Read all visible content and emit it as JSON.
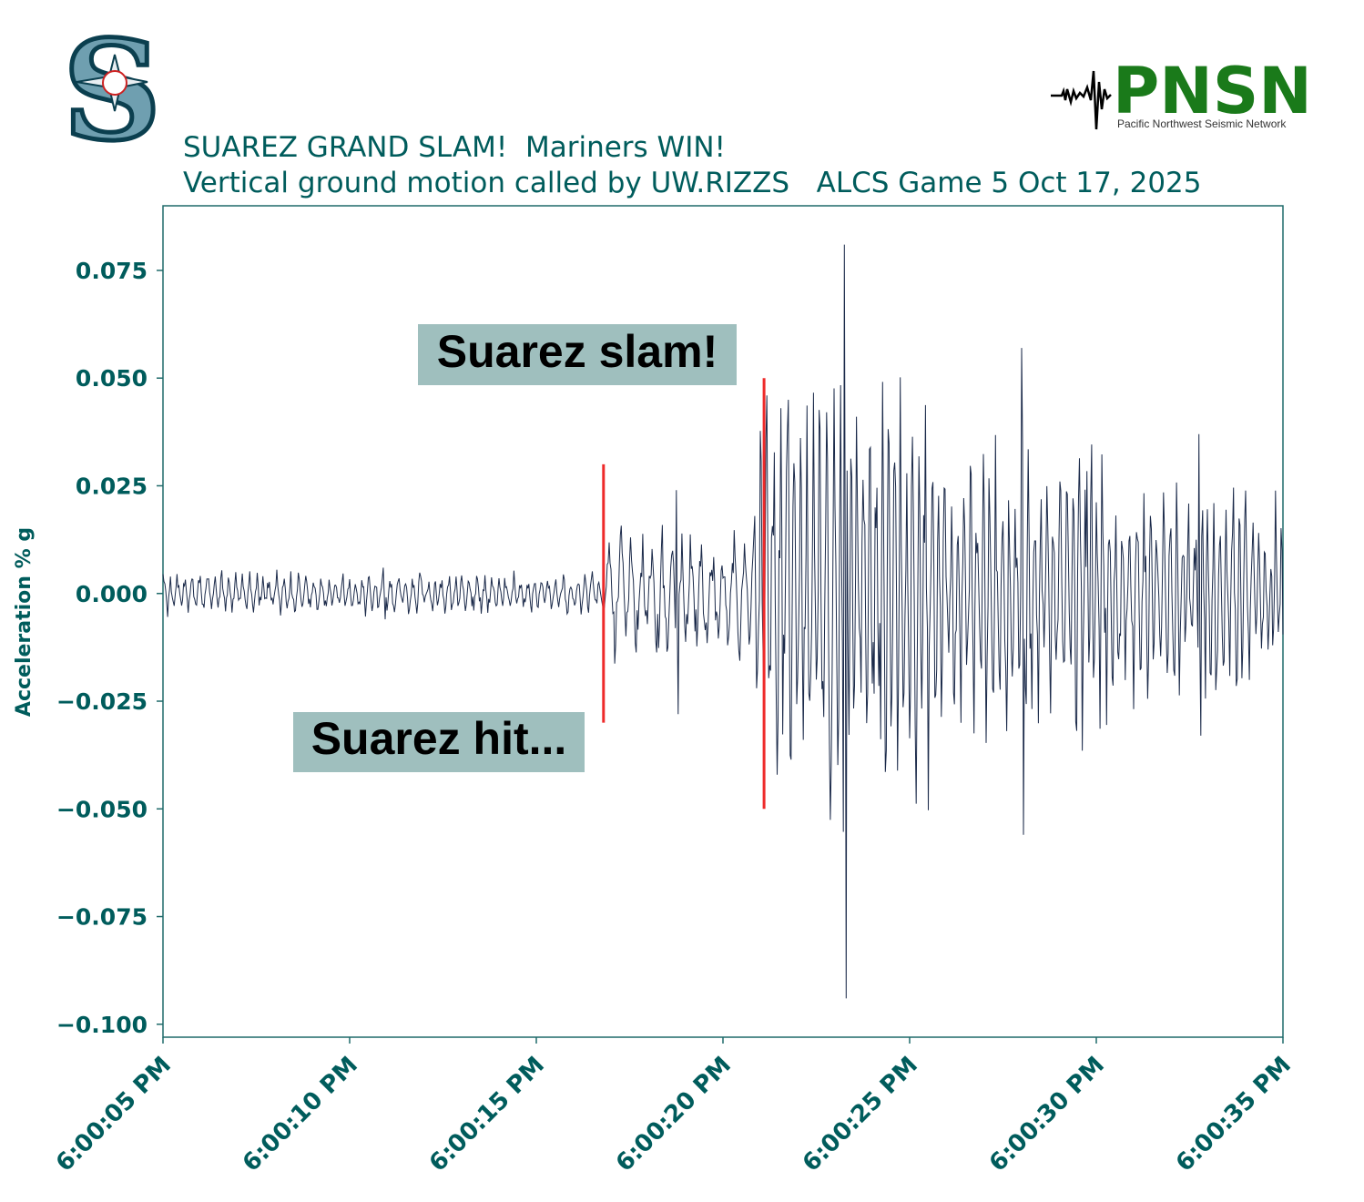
{
  "title": {
    "line1": "SUAREZ GRAND SLAM!  Mariners WIN!",
    "line2": "Vertical ground motion called by UW.RIZZS   ALCS Game 5 Oct 17, 2025"
  },
  "logos": {
    "left": {
      "icon": "mariners-compass-s-logo",
      "letter": "S"
    },
    "right": {
      "icon": "seismogram-icon",
      "name": "PNSN",
      "subtitle": "Pacific Northwest Seismic Network"
    }
  },
  "colors": {
    "text": "#005c5c",
    "trace": "#1b2a4a",
    "marker": "#ee2a2a",
    "annotation_bg": "#9fbfbe",
    "pnsn_green": "#1a7a1a"
  },
  "chart_data": {
    "type": "line",
    "title": "SUAREZ GRAND SLAM!  Mariners WIN!",
    "subtitle": "Vertical ground motion called by UW.RIZZS   ALCS Game 5 Oct 17, 2025",
    "xlabel": "",
    "ylabel": "Acceleration % g",
    "xlim": [
      "6:00:05 PM",
      "6:00:35 PM"
    ],
    "ylim": [
      -0.103,
      0.09
    ],
    "x_ticks": [
      "6:00:05 PM",
      "6:00:10 PM",
      "6:00:15 PM",
      "6:00:20 PM",
      "6:00:25 PM",
      "6:00:30 PM",
      "6:00:35 PM"
    ],
    "y_ticks": [
      0.075,
      0.05,
      0.025,
      0.0,
      -0.025,
      -0.05,
      -0.075,
      -0.1
    ],
    "y_tick_labels": [
      "0.075",
      "0.050",
      "0.025",
      "0.000",
      "−0.025",
      "−0.050",
      "−0.075",
      "−0.100"
    ],
    "grid": false,
    "series": [
      {
        "style": "line",
        "x_unit": "seconds after 6:00:05 PM",
        "segments": [
          {
            "t_start": 0.0,
            "t_end": 11.8,
            "amp": 0.004,
            "period": 0.2,
            "peak_max": 0.006,
            "peak_min": -0.006
          },
          {
            "t_start": 11.8,
            "t_end": 15.7,
            "amp": 0.012,
            "period": 0.3,
            "peak_max": 0.024,
            "peak_min": -0.028
          },
          {
            "t_start": 15.7,
            "t_end": 16.0,
            "amp": 0.015,
            "period": 0.25,
            "peak_max": 0.018,
            "peak_min": -0.022
          },
          {
            "t_start": 16.0,
            "t_end": 20.5,
            "amp": 0.04,
            "period": 0.18,
            "peak_max": 0.081,
            "peak_min": -0.094
          },
          {
            "t_start": 20.5,
            "t_end": 25.5,
            "amp": 0.028,
            "period": 0.18,
            "peak_max": 0.057,
            "peak_min": -0.056
          },
          {
            "t_start": 25.5,
            "t_end": 30.0,
            "amp": 0.02,
            "period": 0.18,
            "peak_max": 0.037,
            "peak_min": -0.033
          }
        ]
      }
    ],
    "markers": [
      {
        "x": "6:00:16.8 PM",
        "y_range": [
          -0.03,
          0.03
        ]
      },
      {
        "x": "6:00:21.1 PM",
        "y_range": [
          -0.05,
          0.05
        ]
      }
    ],
    "annotations": [
      {
        "text": "Suarez slam!"
      },
      {
        "text": "Suarez hit..."
      }
    ]
  }
}
